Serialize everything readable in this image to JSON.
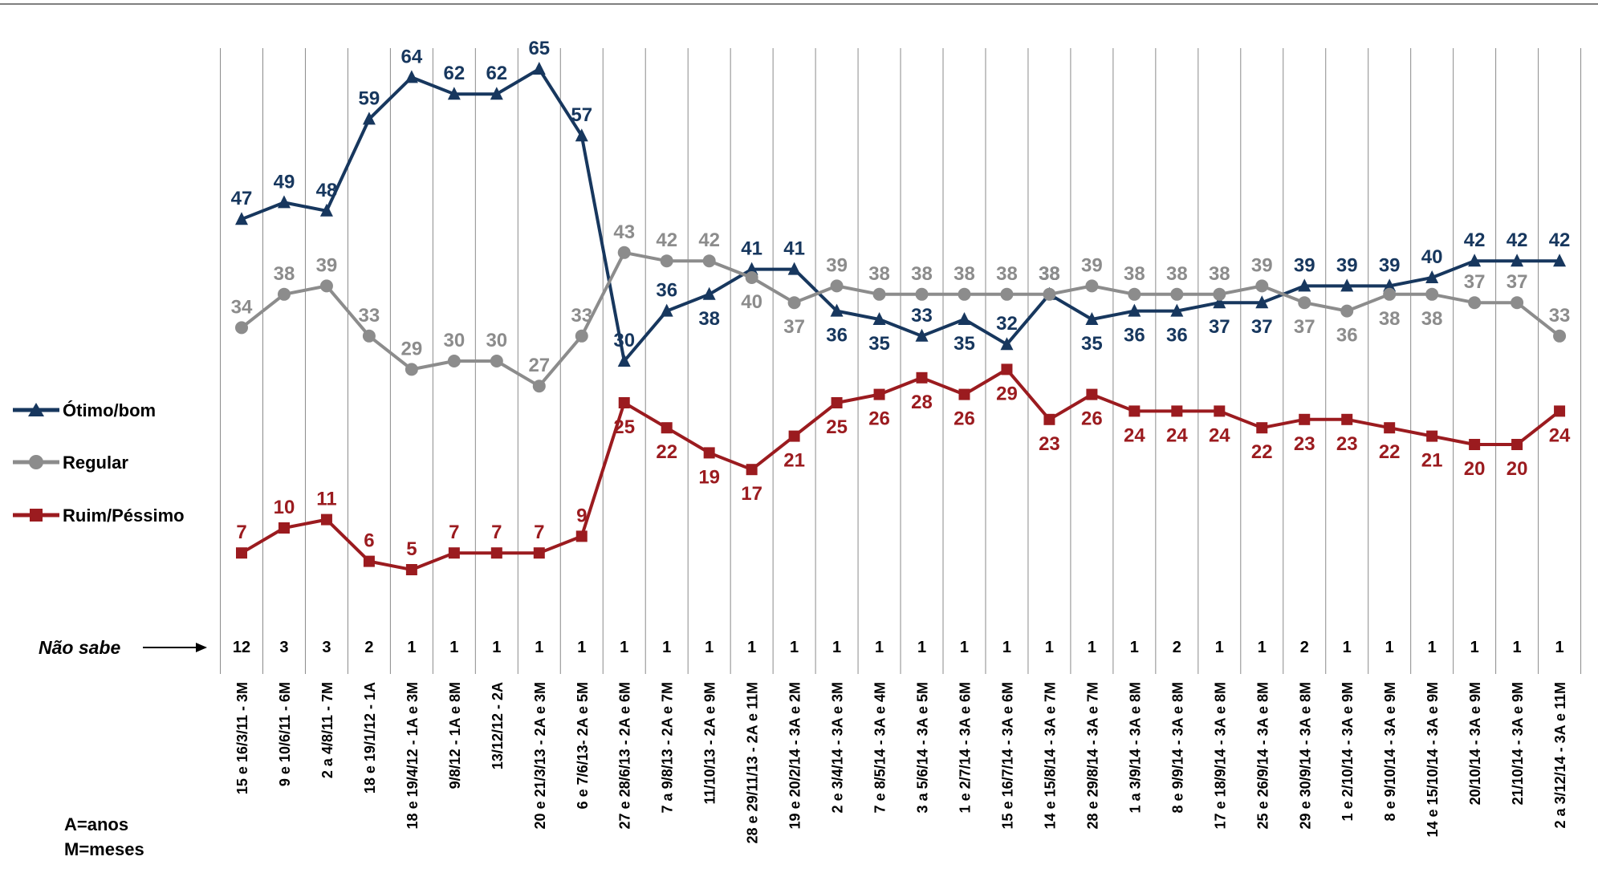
{
  "chart_data": {
    "type": "line",
    "categories": [
      "15 e 16/3/11 - 3M",
      "9 e 10/6/11 - 6M",
      "2 a 4/8/11 - 7M",
      "18 e 19/1/12 - 1A",
      "18 e 19/4/12 - 1A e 3M",
      "9/8/12 - 1A e 8M",
      "13/12/12 - 2A",
      "20 e 21/3/13 - 2A e 3M",
      "6 e 7/6/13- 2A e 5M",
      "27 e 28/6/13 - 2A e 6M",
      "7 a 9/8/13 - 2A e 7M",
      "11/10/13 - 2A e 9M",
      "28 e 29/11/13 - 2A e 11M",
      "19 e 20/2/14 - 3A e 2M",
      "2 e 3/4/14 - 3A e 3M",
      "7 e 8/5/14 - 3A e 4M",
      "3 a 5/6/14 - 3A e 5M",
      "1 e 2/7/14 - 3A e 6M",
      "15 e 16/7/14 - 3A e 6M",
      "14 e 15/8/14 - 3A e 7M",
      "28 e 29/8/14 - 3A e 7M",
      "1 a 3/9/14 - 3A e 8M",
      "8 e 9/9/14 - 3A e 8M",
      "17 e 18/9/14 - 3A e 8M",
      "25 e 26/9/14 - 3A e 8M",
      "29 e 30/9/14 - 3A e 8M",
      "1 e 2/10/14 - 3A e 9M",
      "8 e 9/10/14 - 3A e 9M",
      "14 e 15/10/14 - 3A e 9M",
      "20/10/14 - 3A e 9M",
      "21/10/14 - 3A e 9M",
      "2 a 3/12/14 - 3A e 11M"
    ],
    "series": [
      {
        "name": "Ótimo/bom",
        "color": "#17375E",
        "marker": "triangle",
        "values": [
          47,
          49,
          48,
          59,
          64,
          62,
          62,
          65,
          57,
          30,
          36,
          38,
          41,
          41,
          36,
          35,
          33,
          35,
          32,
          38,
          35,
          36,
          36,
          37,
          37,
          39,
          39,
          39,
          40,
          42,
          42,
          42
        ]
      },
      {
        "name": "Regular",
        "color": "#8C8C8C",
        "marker": "circle",
        "values": [
          34,
          38,
          39,
          33,
          29,
          30,
          30,
          27,
          33,
          43,
          42,
          42,
          40,
          37,
          39,
          38,
          38,
          38,
          38,
          38,
          39,
          38,
          38,
          38,
          39,
          37,
          36,
          38,
          38,
          37,
          37,
          33
        ]
      },
      {
        "name": "Ruim/Péssimo",
        "color": "#9B1B1F",
        "marker": "square",
        "values": [
          7,
          10,
          11,
          6,
          5,
          7,
          7,
          7,
          9,
          25,
          22,
          19,
          17,
          21,
          25,
          26,
          28,
          26,
          29,
          23,
          26,
          24,
          24,
          24,
          22,
          23,
          23,
          22,
          21,
          20,
          20,
          24
        ]
      }
    ],
    "nao_sabe": {
      "label": "Não sabe",
      "values": [
        "12",
        "3",
        "3",
        "2",
        "1",
        "1",
        "1",
        "1",
        "1",
        "1",
        "1",
        "1",
        "1",
        "1",
        "1",
        "1",
        "1",
        "1",
        "1",
        "1",
        "1",
        "1",
        "2",
        "1",
        "1",
        "2",
        "1",
        "1",
        "1",
        "1",
        "1",
        "1"
      ]
    },
    "legend_position": "left",
    "footnote": [
      "A=anos",
      "M=meses"
    ],
    "grid": "vertical"
  }
}
